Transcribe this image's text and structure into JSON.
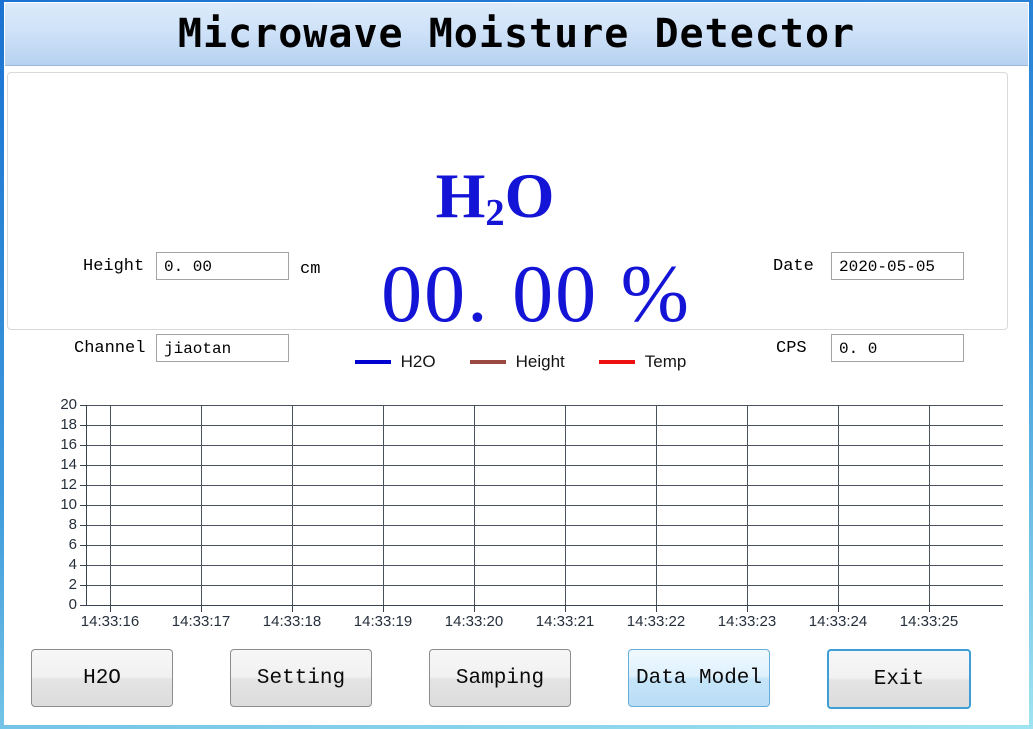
{
  "window": {
    "title": "Microwave Moisture Detector"
  },
  "readout": {
    "h2o_main": "H",
    "h2o_sub": "2",
    "h2o_end": "O",
    "value": "00. 00 %",
    "fields": {
      "height": {
        "label": "Height",
        "value": "0. 00",
        "unit": "cm"
      },
      "channel": {
        "label": "Channel",
        "value": "jiaotan"
      },
      "date": {
        "label": "Date",
        "value": "2020-05-05"
      },
      "cps": {
        "label": "CPS",
        "value": "0. 0"
      }
    }
  },
  "chart_data": {
    "type": "line",
    "title": "",
    "xlabel": "",
    "ylabel": "",
    "x_ticks": [
      "14:33:16",
      "14:33:17",
      "14:33:18",
      "14:33:19",
      "14:33:20",
      "14:33:21",
      "14:33:22",
      "14:33:23",
      "14:33:24",
      "14:33:25"
    ],
    "y_ticks": [
      0,
      2,
      4,
      6,
      8,
      10,
      12,
      14,
      16,
      18,
      20
    ],
    "ylim": [
      0,
      20
    ],
    "grid": true,
    "legend_position": "top",
    "series": [
      {
        "name": "H2O",
        "color": "#0000d0",
        "values": []
      },
      {
        "name": "Height",
        "color": "#9b4a42",
        "values": []
      },
      {
        "name": "Temp",
        "color": "#ee1010",
        "values": []
      }
    ]
  },
  "buttons": [
    {
      "label": "H2O",
      "state": "normal"
    },
    {
      "label": "Setting",
      "state": "normal"
    },
    {
      "label": "Samping",
      "state": "normal"
    },
    {
      "label": "Data Model",
      "state": "active"
    },
    {
      "label": "Exit",
      "state": "focused"
    }
  ],
  "colors": {
    "accent_blue_text": "#1414d6",
    "frame_top": "#1a72d2",
    "frame_bottom": "#9fe4f0",
    "titlebar_top": "#dcebfb",
    "titlebar_bottom": "#b7d2f1",
    "grid_line": "#49525e",
    "active_button_fill": "#cde8fa",
    "active_button_border": "#64aed9"
  }
}
